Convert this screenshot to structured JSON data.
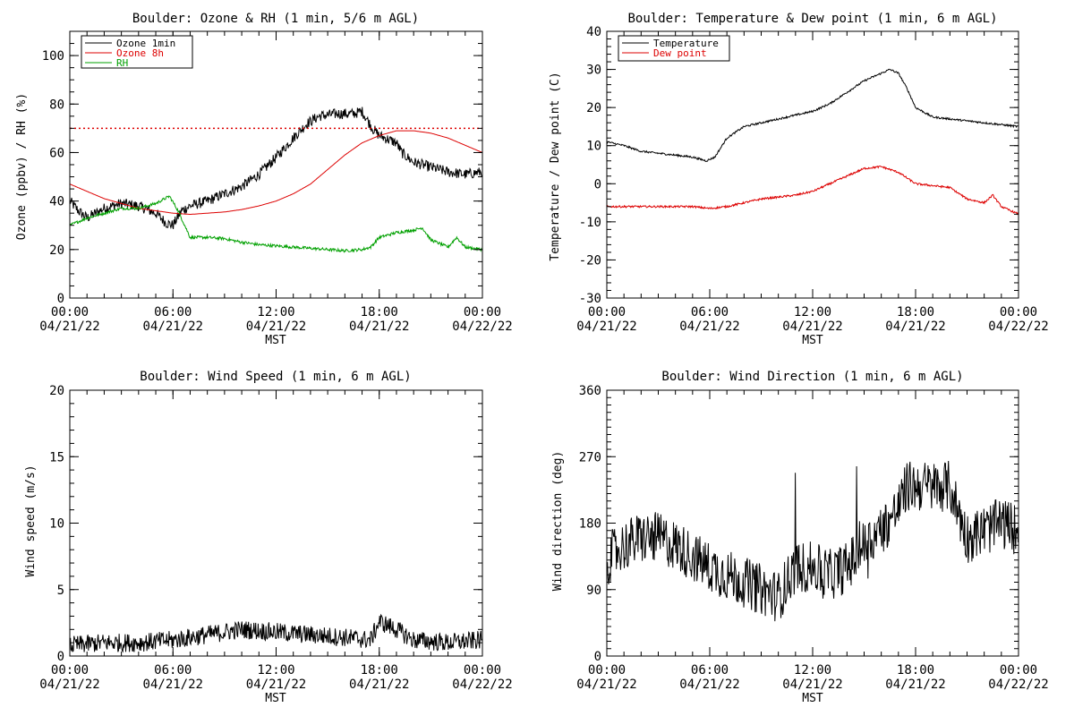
{
  "chart_data": [
    {
      "type": "line",
      "title": "Boulder: Ozone & RH (1 min, 5/6 m AGL)",
      "xlabel": "MST",
      "ylabel": "Ozone (ppbv) / RH (%)",
      "x_ticks": [
        {
          "time": "00:00",
          "date": "04/21/22"
        },
        {
          "time": "06:00",
          "date": "04/21/22"
        },
        {
          "time": "12:00",
          "date": "04/21/22"
        },
        {
          "time": "18:00",
          "date": "04/21/22"
        },
        {
          "time": "00:00",
          "date": "04/22/22"
        }
      ],
      "xlim": [
        "04/21/22 00:00",
        "04/22/22 00:00"
      ],
      "ylim": [
        0,
        110
      ],
      "y_ticks": [
        0,
        20,
        40,
        60,
        80,
        100
      ],
      "y_minor": 5,
      "grid": false,
      "legend": "top-left",
      "reference_line": {
        "y": 70,
        "color": "#dd0000",
        "style": "dotted"
      },
      "series": [
        {
          "name": "Ozone 1min",
          "color": "#000000",
          "noise": 2.2,
          "points": [
            [
              0,
              40
            ],
            [
              0.5,
              36
            ],
            [
              1,
              33
            ],
            [
              2,
              37
            ],
            [
              3,
              39
            ],
            [
              4,
              38
            ],
            [
              5,
              35
            ],
            [
              5.6,
              31
            ],
            [
              6,
              30
            ],
            [
              6.5,
              36
            ],
            [
              7,
              38
            ],
            [
              8,
              40
            ],
            [
              9,
              43
            ],
            [
              10,
              46
            ],
            [
              11,
              51
            ],
            [
              12,
              58
            ],
            [
              13,
              66
            ],
            [
              13.8,
              72
            ],
            [
              14.5,
              75
            ],
            [
              15.5,
              76
            ],
            [
              16.5,
              76
            ],
            [
              17,
              77
            ],
            [
              17.6,
              70
            ],
            [
              18,
              67
            ],
            [
              19,
              64
            ],
            [
              19.3,
              60
            ],
            [
              20,
              56
            ],
            [
              21,
              54
            ],
            [
              22,
              52
            ],
            [
              23,
              51
            ],
            [
              24,
              52
            ]
          ]
        },
        {
          "name": "Ozone 8h",
          "color": "#dd0000",
          "noise": 0,
          "points": [
            [
              0,
              47
            ],
            [
              1,
              44
            ],
            [
              2,
              41
            ],
            [
              3,
              39
            ],
            [
              4,
              37
            ],
            [
              5,
              36
            ],
            [
              6,
              35
            ],
            [
              7,
              34.5
            ],
            [
              8,
              35
            ],
            [
              9,
              35.5
            ],
            [
              10,
              36.5
            ],
            [
              11,
              38
            ],
            [
              12,
              40
            ],
            [
              13,
              43
            ],
            [
              14,
              47
            ],
            [
              15,
              53
            ],
            [
              16,
              59
            ],
            [
              17,
              64
            ],
            [
              18,
              67
            ],
            [
              19,
              69
            ],
            [
              20,
              69
            ],
            [
              21,
              68
            ],
            [
              22,
              66
            ],
            [
              23,
              63
            ],
            [
              24,
              60
            ]
          ]
        },
        {
          "name": "RH",
          "color": "#00a000",
          "noise": 0.6,
          "points": [
            [
              0,
              30
            ],
            [
              1,
              33
            ],
            [
              2,
              35
            ],
            [
              3,
              37
            ],
            [
              4,
              37
            ],
            [
              5,
              39
            ],
            [
              5.8,
              42
            ],
            [
              6.3,
              36
            ],
            [
              7,
              25
            ],
            [
              8,
              25
            ],
            [
              9,
              24.5
            ],
            [
              10,
              23
            ],
            [
              11,
              22
            ],
            [
              12,
              21.5
            ],
            [
              13,
              21
            ],
            [
              14,
              20.5
            ],
            [
              15,
              20
            ],
            [
              16,
              19.5
            ],
            [
              17,
              20
            ],
            [
              17.5,
              21
            ],
            [
              18,
              25
            ],
            [
              19,
              27
            ],
            [
              20,
              28
            ],
            [
              20.5,
              29
            ],
            [
              21,
              24
            ],
            [
              22,
              21
            ],
            [
              22.5,
              25
            ],
            [
              23,
              21
            ],
            [
              24,
              20
            ]
          ]
        }
      ]
    },
    {
      "type": "line",
      "title": "Boulder: Temperature & Dew point (1 min, 6 m AGL)",
      "xlabel": "MST",
      "ylabel": "Temperature / Dew point (C)",
      "x_ticks": [
        {
          "time": "00:00",
          "date": "04/21/22"
        },
        {
          "time": "06:00",
          "date": "04/21/22"
        },
        {
          "time": "12:00",
          "date": "04/21/22"
        },
        {
          "time": "18:00",
          "date": "04/21/22"
        },
        {
          "time": "00:00",
          "date": "04/22/22"
        }
      ],
      "xlim": [
        "04/21/22 00:00",
        "04/22/22 00:00"
      ],
      "ylim": [
        -30,
        40
      ],
      "y_ticks": [
        -30,
        -20,
        -10,
        0,
        10,
        20,
        30,
        40
      ],
      "y_minor": 2,
      "grid": false,
      "legend": "top-left",
      "series": [
        {
          "name": "Temperature",
          "color": "#000000",
          "noise": 0.25,
          "points": [
            [
              0,
              11
            ],
            [
              1,
              10
            ],
            [
              2,
              8.5
            ],
            [
              3,
              8
            ],
            [
              4,
              7.5
            ],
            [
              5,
              7
            ],
            [
              5.8,
              6
            ],
            [
              6.3,
              7
            ],
            [
              7,
              12
            ],
            [
              8,
              15
            ],
            [
              9,
              16
            ],
            [
              10,
              17
            ],
            [
              11,
              18
            ],
            [
              12,
              19
            ],
            [
              13,
              21
            ],
            [
              14,
              24
            ],
            [
              15,
              27
            ],
            [
              16,
              29
            ],
            [
              16.5,
              30
            ],
            [
              17,
              29
            ],
            [
              17.5,
              25
            ],
            [
              18,
              20
            ],
            [
              19,
              17.5
            ],
            [
              20,
              17
            ],
            [
              21,
              16.5
            ],
            [
              22,
              16
            ],
            [
              23,
              15.5
            ],
            [
              24,
              15
            ]
          ]
        },
        {
          "name": "Dew point",
          "color": "#dd0000",
          "noise": 0.25,
          "points": [
            [
              0,
              -6
            ],
            [
              1,
              -6
            ],
            [
              2,
              -6
            ],
            [
              3,
              -6
            ],
            [
              4,
              -6
            ],
            [
              5,
              -6
            ],
            [
              6,
              -6.5
            ],
            [
              7,
              -6
            ],
            [
              8,
              -5
            ],
            [
              9,
              -4
            ],
            [
              10,
              -3.5
            ],
            [
              11,
              -3
            ],
            [
              12,
              -2
            ],
            [
              13,
              0
            ],
            [
              14,
              2
            ],
            [
              15,
              4
            ],
            [
              16,
              4.5
            ],
            [
              17,
              3
            ],
            [
              18,
              0
            ],
            [
              19,
              -0.5
            ],
            [
              20,
              -1
            ],
            [
              21,
              -4
            ],
            [
              22,
              -5
            ],
            [
              22.5,
              -3
            ],
            [
              23,
              -6
            ],
            [
              24,
              -8
            ]
          ]
        }
      ]
    },
    {
      "type": "line",
      "title": "Boulder: Wind Speed (1 min, 6 m AGL)",
      "xlabel": "MST",
      "ylabel": "Wind speed (m/s)",
      "x_ticks": [
        {
          "time": "00:00",
          "date": "04/21/22"
        },
        {
          "time": "06:00",
          "date": "04/21/22"
        },
        {
          "time": "12:00",
          "date": "04/21/22"
        },
        {
          "time": "18:00",
          "date": "04/21/22"
        },
        {
          "time": "00:00",
          "date": "04/22/22"
        }
      ],
      "xlim": [
        "04/21/22 00:00",
        "04/22/22 00:00"
      ],
      "ylim": [
        0,
        20
      ],
      "y_ticks": [
        0,
        5,
        10,
        15,
        20
      ],
      "y_minor": 1,
      "grid": false,
      "series": [
        {
          "color": "#000000",
          "noise": 0.7,
          "points": [
            [
              0,
              0.8
            ],
            [
              2,
              1.0
            ],
            [
              4,
              1.0
            ],
            [
              6,
              1.2
            ],
            [
              8,
              1.6
            ],
            [
              10,
              2.0
            ],
            [
              12,
              1.8
            ],
            [
              14,
              1.6
            ],
            [
              16,
              1.4
            ],
            [
              17.5,
              1.2
            ],
            [
              18,
              2.6
            ],
            [
              19,
              2.0
            ],
            [
              20,
              1.2
            ],
            [
              22,
              1.0
            ],
            [
              24,
              1.2
            ]
          ]
        }
      ]
    },
    {
      "type": "line",
      "title": "Boulder: Wind Direction (1 min, 6 m AGL)",
      "xlabel": "MST",
      "ylabel": "Wind direction (deg)",
      "x_ticks": [
        {
          "time": "00:00",
          "date": "04/21/22"
        },
        {
          "time": "06:00",
          "date": "04/21/22"
        },
        {
          "time": "12:00",
          "date": "04/21/22"
        },
        {
          "time": "18:00",
          "date": "04/21/22"
        },
        {
          "time": "00:00",
          "date": "04/22/22"
        }
      ],
      "xlim": [
        "04/21/22 00:00",
        "04/22/22 00:00"
      ],
      "ylim": [
        0,
        360
      ],
      "y_ticks": [
        0,
        90,
        180,
        270,
        360
      ],
      "y_minor": 10,
      "grid": false,
      "series": [
        {
          "color": "#000000",
          "noise": 35,
          "points": [
            [
              0,
              130
            ],
            [
              1,
              150
            ],
            [
              2,
              160
            ],
            [
              3,
              160
            ],
            [
              4,
              150
            ],
            [
              5,
              135
            ],
            [
              6,
              120
            ],
            [
              7,
              110
            ],
            [
              8,
              100
            ],
            [
              9,
              90
            ],
            [
              10,
              80
            ],
            [
              11,
              120
            ],
            [
              12,
              120
            ],
            [
              13,
              110
            ],
            [
              14,
              120
            ],
            [
              15,
              150
            ],
            [
              16,
              170
            ],
            [
              17,
              200
            ],
            [
              17.5,
              230
            ],
            [
              18,
              230
            ],
            [
              19,
              230
            ],
            [
              20,
              230
            ],
            [
              21,
              160
            ],
            [
              22,
              170
            ],
            [
              23,
              180
            ],
            [
              24,
              170
            ]
          ]
        }
      ]
    }
  ]
}
